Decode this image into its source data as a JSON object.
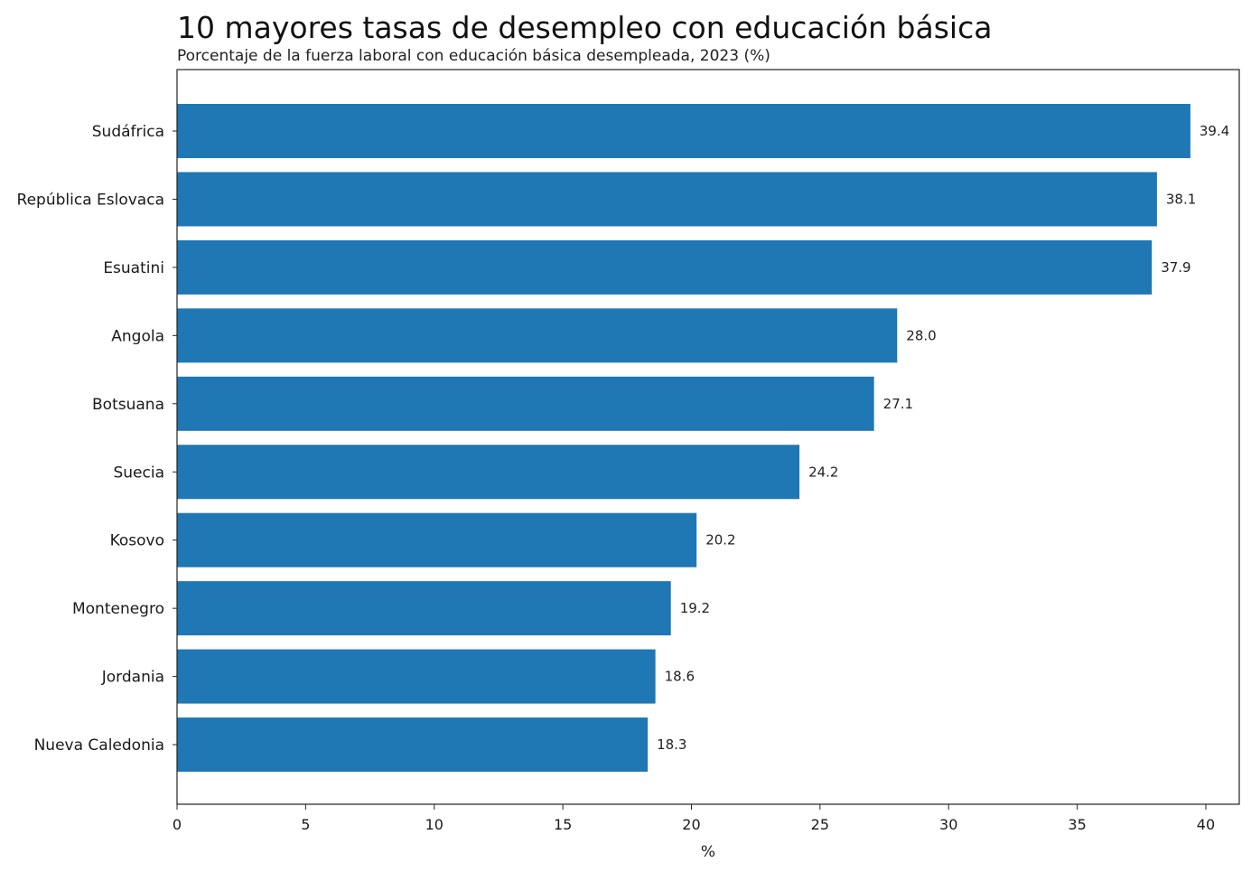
{
  "chart_data": {
    "type": "bar",
    "orientation": "horizontal",
    "title": "10 mayores tasas de desempleo con educación básica",
    "subtitle": "Porcentaje de la fuerza laboral con educación básica desempleada, 2023 (%)",
    "xlabel": "%",
    "ylabel": "",
    "xlim": [
      0,
      41.3
    ],
    "xticks": [
      0,
      5,
      10,
      15,
      20,
      25,
      30,
      35,
      40
    ],
    "categories": [
      "Sudáfrica",
      "República Eslovaca",
      "Esuatini",
      "Angola",
      "Botsuana",
      "Suecia",
      "Kosovo",
      "Montenegro",
      "Jordania",
      "Nueva Caledonia"
    ],
    "values": [
      39.4,
      38.1,
      37.9,
      28.0,
      27.1,
      24.2,
      20.2,
      19.2,
      18.6,
      18.3
    ],
    "value_labels": [
      "39.4",
      "38.1",
      "37.9",
      "28.0",
      "27.1",
      "24.2",
      "20.2",
      "19.2",
      "18.6",
      "18.3"
    ],
    "bar_color": "#1f77b4",
    "grid": false,
    "legend": "none"
  }
}
